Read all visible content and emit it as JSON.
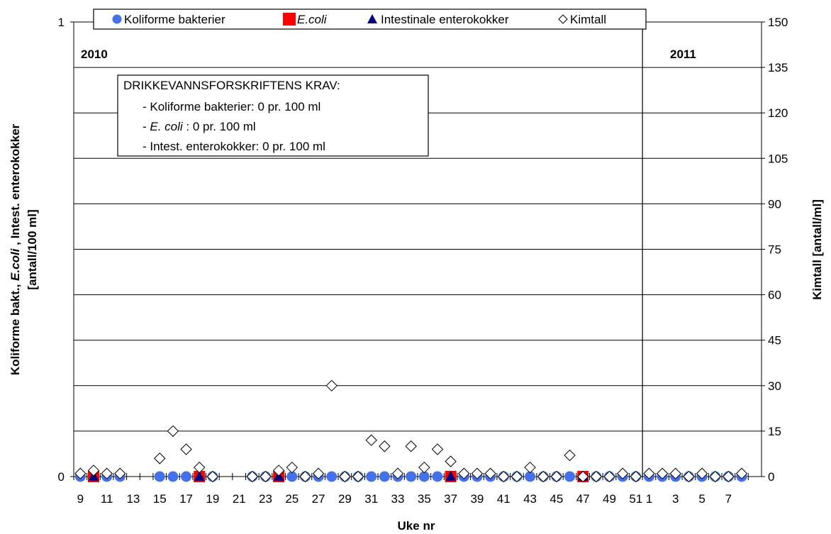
{
  "chart_data": {
    "type": "scatter",
    "xlabel": "Uke nr",
    "ylabel_left_parts": [
      "Koliforme bakt., ",
      "E.coli",
      " , Intest. enterokokker"
    ],
    "ylabel_left_line2": "[antall/100 ml]",
    "ylabel_right": "Kimtall  [antall/ml]",
    "ylim_left": [
      0,
      1
    ],
    "ylim_right": [
      0,
      150
    ],
    "left_ticks": [
      "0",
      "1"
    ],
    "right_ticks": [
      "0",
      "15",
      "30",
      "45",
      "60",
      "75",
      "90",
      "105",
      "120",
      "135",
      "150"
    ],
    "grid": true,
    "legend_position": "top",
    "x_tick_labels": [
      "9",
      "11",
      "13",
      "15",
      "17",
      "19",
      "21",
      "23",
      "25",
      "27",
      "29",
      "31",
      "33",
      "35",
      "37",
      "39",
      "41",
      "43",
      "45",
      "47",
      "49",
      "51",
      "1",
      "3",
      "5",
      "7"
    ],
    "years": [
      {
        "label": "2010",
        "weeks": [
          9,
          10,
          11,
          12,
          13,
          14,
          15,
          16,
          17,
          18,
          19,
          20,
          21,
          22,
          23,
          24,
          25,
          26,
          27,
          28,
          29,
          30,
          31,
          32,
          33,
          34,
          35,
          36,
          37,
          38,
          39,
          40,
          41,
          42,
          43,
          44,
          45,
          46,
          47,
          48,
          49,
          50,
          51
        ]
      },
      {
        "label": "2011",
        "weeks": [
          1,
          2,
          3,
          4,
          5,
          6,
          7,
          8
        ]
      }
    ],
    "series": [
      {
        "name": "Koliforme bakterier",
        "axis": "left",
        "marker": "circle",
        "color": "#4472ee",
        "points": [
          [
            "2010",
            9,
            0
          ],
          [
            "2010",
            10,
            0
          ],
          [
            "2010",
            11,
            0
          ],
          [
            "2010",
            12,
            0
          ],
          [
            "2010",
            15,
            0
          ],
          [
            "2010",
            16,
            0
          ],
          [
            "2010",
            17,
            0
          ],
          [
            "2010",
            18,
            0
          ],
          [
            "2010",
            19,
            0
          ],
          [
            "2010",
            22,
            0
          ],
          [
            "2010",
            23,
            0
          ],
          [
            "2010",
            24,
            0
          ],
          [
            "2010",
            25,
            0
          ],
          [
            "2010",
            26,
            0
          ],
          [
            "2010",
            27,
            0
          ],
          [
            "2010",
            28,
            0
          ],
          [
            "2010",
            29,
            0
          ],
          [
            "2010",
            30,
            0
          ],
          [
            "2010",
            31,
            0
          ],
          [
            "2010",
            32,
            0
          ],
          [
            "2010",
            33,
            0
          ],
          [
            "2010",
            34,
            0
          ],
          [
            "2010",
            35,
            0
          ],
          [
            "2010",
            36,
            0
          ],
          [
            "2010",
            37,
            0
          ],
          [
            "2010",
            38,
            0
          ],
          [
            "2010",
            39,
            0
          ],
          [
            "2010",
            40,
            0
          ],
          [
            "2010",
            41,
            0
          ],
          [
            "2010",
            42,
            0
          ],
          [
            "2010",
            43,
            0
          ],
          [
            "2010",
            44,
            0
          ],
          [
            "2010",
            45,
            0
          ],
          [
            "2010",
            46,
            0
          ],
          [
            "2010",
            47,
            0
          ],
          [
            "2010",
            48,
            0
          ],
          [
            "2010",
            49,
            0
          ],
          [
            "2010",
            50,
            0
          ],
          [
            "2010",
            51,
            0
          ],
          [
            "2011",
            1,
            0
          ],
          [
            "2011",
            2,
            0
          ],
          [
            "2011",
            3,
            0
          ],
          [
            "2011",
            4,
            0
          ],
          [
            "2011",
            5,
            0
          ],
          [
            "2011",
            6,
            0
          ],
          [
            "2011",
            7,
            0
          ],
          [
            "2011",
            8,
            0
          ]
        ]
      },
      {
        "name": "E.coli",
        "axis": "left",
        "marker": "square",
        "color": "#ff0000",
        "points": [
          [
            "2010",
            10,
            0
          ],
          [
            "2010",
            18,
            0
          ],
          [
            "2010",
            24,
            0
          ],
          [
            "2010",
            37,
            0
          ],
          [
            "2010",
            47,
            0
          ]
        ]
      },
      {
        "name": "Intestinale enterokokker",
        "axis": "left",
        "marker": "triangle",
        "color": "#000080",
        "points": [
          [
            "2010",
            10,
            0
          ],
          [
            "2010",
            18,
            0
          ],
          [
            "2010",
            24,
            0
          ],
          [
            "2010",
            37,
            0
          ],
          [
            "2010",
            47,
            0
          ]
        ]
      },
      {
        "name": "Kimtall",
        "axis": "right",
        "marker": "diamond",
        "color": "#ffffff",
        "points": [
          [
            "2010",
            9,
            1
          ],
          [
            "2010",
            10,
            2
          ],
          [
            "2010",
            11,
            1
          ],
          [
            "2010",
            12,
            1
          ],
          [
            "2010",
            15,
            6
          ],
          [
            "2010",
            16,
            15
          ],
          [
            "2010",
            17,
            9
          ],
          [
            "2010",
            18,
            3
          ],
          [
            "2010",
            19,
            0
          ],
          [
            "2010",
            22,
            0
          ],
          [
            "2010",
            23,
            0
          ],
          [
            "2010",
            24,
            2
          ],
          [
            "2010",
            25,
            3
          ],
          [
            "2010",
            26,
            0
          ],
          [
            "2010",
            27,
            1
          ],
          [
            "2010",
            28,
            30
          ],
          [
            "2010",
            29,
            0
          ],
          [
            "2010",
            30,
            0
          ],
          [
            "2010",
            31,
            12
          ],
          [
            "2010",
            32,
            10
          ],
          [
            "2010",
            33,
            1
          ],
          [
            "2010",
            34,
            10
          ],
          [
            "2010",
            35,
            3
          ],
          [
            "2010",
            36,
            9
          ],
          [
            "2010",
            37,
            5
          ],
          [
            "2010",
            38,
            1
          ],
          [
            "2010",
            39,
            1
          ],
          [
            "2010",
            40,
            1
          ],
          [
            "2010",
            41,
            0
          ],
          [
            "2010",
            42,
            0
          ],
          [
            "2010",
            43,
            3
          ],
          [
            "2010",
            44,
            0
          ],
          [
            "2010",
            45,
            0
          ],
          [
            "2010",
            46,
            7
          ],
          [
            "2010",
            47,
            0
          ],
          [
            "2010",
            48,
            0
          ],
          [
            "2010",
            49,
            0
          ],
          [
            "2010",
            50,
            1
          ],
          [
            "2010",
            51,
            0
          ],
          [
            "2011",
            1,
            1
          ],
          [
            "2011",
            2,
            1
          ],
          [
            "2011",
            3,
            1
          ],
          [
            "2011",
            4,
            0
          ],
          [
            "2011",
            5,
            1
          ],
          [
            "2011",
            6,
            0
          ],
          [
            "2011",
            7,
            0
          ],
          [
            "2011",
            8,
            1
          ]
        ]
      }
    ],
    "annotation_box": {
      "title": "DRIKKEVANNSFORSKRIFTENS KRAV:",
      "lines": [
        {
          "prefix": "- Koliforme bakterier: 0 pr. 100 ml",
          "italic": "",
          "suffix": ""
        },
        {
          "prefix": "- ",
          "italic": "E. coli",
          "suffix": " : 0 pr. 100 ml"
        },
        {
          "prefix": "- Intest. enterokokker: 0 pr. 100 ml",
          "italic": "",
          "suffix": ""
        }
      ]
    }
  }
}
